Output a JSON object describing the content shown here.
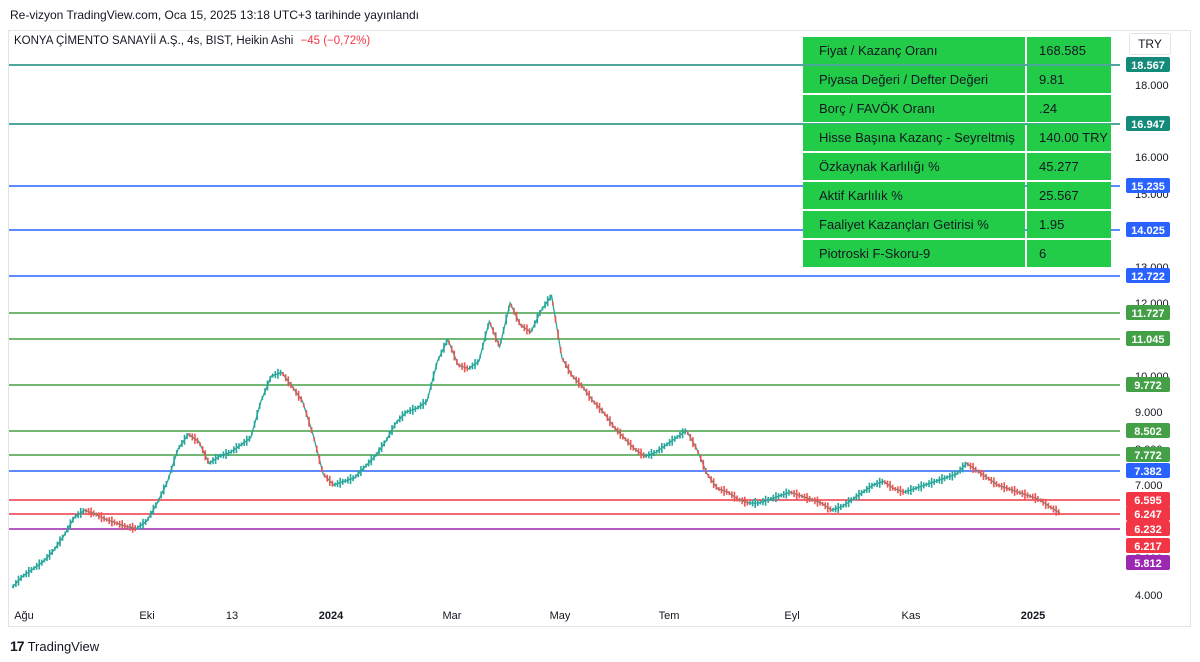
{
  "header": {
    "published": "Re-vizyon TradingView.com, Oca 15, 2025 13:18 UTC+3 tarihinde yayınlandı"
  },
  "symbol": {
    "title": "KONYA ÇİMENTO SANAYİİ A.Ş., 4s, BIST, Heikin Ashi",
    "change": "−45 (−0,72%)"
  },
  "currency": "TRY",
  "fundamentals": [
    {
      "label": "Fiyat / Kazanç Oranı",
      "value": "168.585"
    },
    {
      "label": "Piyasa Değeri / Defter Değeri",
      "value": "9.81"
    },
    {
      "label": "Borç / FAVÖK Oranı",
      "value": ".24"
    },
    {
      "label": "Hisse Başına Kazanç - Seyreltmiş",
      "value": "140.00  TRY"
    },
    {
      "label": "Özkaynak Karlılığı %",
      "value": "45.277"
    },
    {
      "label": "Aktif Karlılık %",
      "value": "25.567"
    },
    {
      "label": "Faaliyet Kazançları Getirisi %",
      "value": "1.95"
    },
    {
      "label": "Piotroski F-Skoru-9",
      "value": "6"
    }
  ],
  "footer": {
    "brand": "TradingView",
    "logo": "tradingview-logo"
  },
  "chart_data": {
    "type": "line",
    "scale": "log",
    "price_ticks": [
      "4.000",
      "5.000",
      "6.000",
      "7.000",
      "8.000",
      "9.000",
      "10.000",
      "12.000",
      "13.000",
      "14.000",
      "15.000",
      "16.000",
      "18.000"
    ],
    "time_ticks": [
      {
        "label": "Ağu",
        "bold": false
      },
      {
        "label": "Eki",
        "bold": false
      },
      {
        "label": "13",
        "bold": false
      },
      {
        "label": "2024",
        "bold": true
      },
      {
        "label": "Mar",
        "bold": false
      },
      {
        "label": "May",
        "bold": false
      },
      {
        "label": "Tem",
        "bold": false
      },
      {
        "label": "Eyl",
        "bold": false
      },
      {
        "label": "Kas",
        "bold": false
      },
      {
        "label": "2025",
        "bold": true
      }
    ],
    "levels": [
      {
        "value": "18.567",
        "color": "#138a7a"
      },
      {
        "value": "16.947",
        "color": "#138a7a"
      },
      {
        "value": "15.235",
        "color": "#2962ff"
      },
      {
        "value": "14.025",
        "color": "#2962ff"
      },
      {
        "value": "12.722",
        "color": "#2962ff"
      },
      {
        "value": "11.727",
        "color": "#43a047"
      },
      {
        "value": "11.045",
        "color": "#43a047"
      },
      {
        "value": "9.772",
        "color": "#43a047"
      },
      {
        "value": "8.502",
        "color": "#43a047"
      },
      {
        "value": "7.772",
        "color": "#43a047"
      },
      {
        "value": "7.382",
        "color": "#2962ff"
      },
      {
        "value": "6.595",
        "color": "#f23645"
      },
      {
        "value": "6.247",
        "color": "#f23645"
      },
      {
        "value": "5.812",
        "color": "#9c27b0"
      }
    ],
    "extra_labels": [
      {
        "value": "6.232",
        "color": "#f23645"
      },
      {
        "value": "6.217",
        "color": "#f23645"
      }
    ],
    "series": [
      {
        "values": [
          4.2,
          4.5,
          4.7,
          4.9,
          5.2,
          5.6,
          6.1,
          6.3,
          6.2,
          6.05,
          5.95,
          5.85,
          5.8,
          6.0,
          6.5,
          7.1,
          8.0,
          8.4,
          8.2,
          7.6,
          7.8,
          7.9,
          8.1,
          8.3,
          9.3,
          10.0,
          10.1,
          9.7,
          9.3,
          8.4,
          7.3,
          7.0,
          7.1,
          7.2,
          7.5,
          7.8,
          8.2,
          8.7,
          9.0,
          9.1,
          9.3,
          10.4,
          11.0,
          10.3,
          10.2,
          10.4,
          11.5,
          10.8,
          12.0,
          11.4,
          11.2,
          11.8,
          12.2,
          10.5,
          10.0,
          9.7,
          9.3,
          9.0,
          8.6,
          8.3,
          8.0,
          7.8,
          7.9,
          8.1,
          8.3,
          8.5,
          8.0,
          7.3,
          6.9,
          6.8,
          6.6,
          6.5,
          6.5,
          6.6,
          6.7,
          6.8,
          6.7,
          6.6,
          6.5,
          6.3,
          6.4,
          6.6,
          6.8,
          7.0,
          7.1,
          6.9,
          6.8,
          6.9,
          7.0,
          7.1,
          7.2,
          7.3,
          7.6,
          7.4,
          7.2,
          7.0,
          6.9,
          6.8,
          6.7,
          6.6,
          6.4,
          6.22
        ]
      }
    ],
    "last_value": "6.217",
    "grid": false
  }
}
